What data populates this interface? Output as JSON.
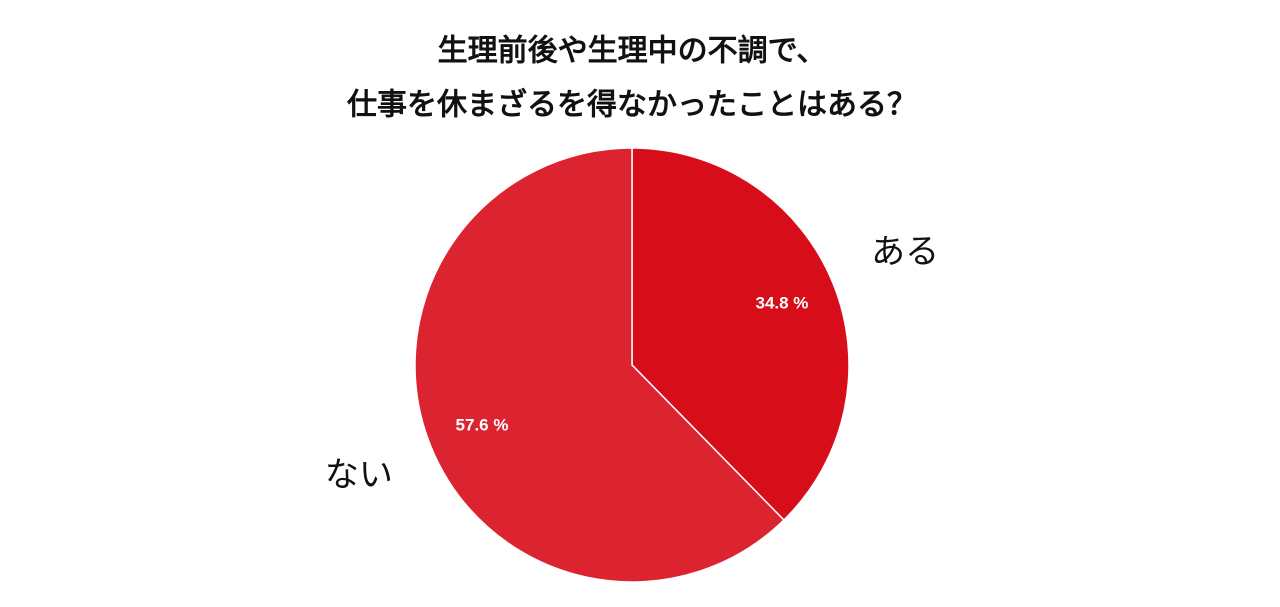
{
  "chart_data": {
    "type": "pie",
    "title": [
      "生理前後や生理中の不調で、",
      "仕事を休まざるを得なかったことはある？"
    ],
    "categories": [
      "ある",
      "ない"
    ],
    "values": [
      34.8,
      57.6
    ],
    "value_labels": [
      "34.8 %",
      "57.6 %"
    ],
    "colors": [
      "#d80d1a",
      "#dc2430"
    ]
  }
}
